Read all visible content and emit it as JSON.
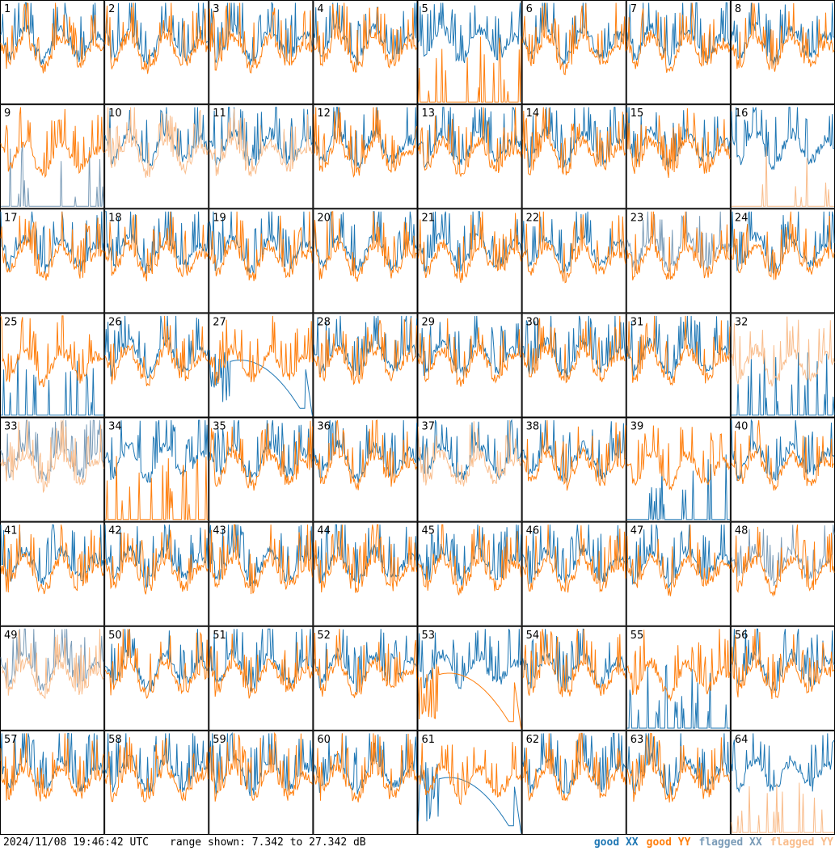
{
  "footer": {
    "timestamp": "2024/11/08 19:46:42 UTC",
    "range_text": "range shown: 7.342 to 27.342 dB"
  },
  "legend": [
    {
      "label": "good XX",
      "color": "#1f77b4"
    },
    {
      "label": "good YY",
      "color": "#ff7f0e"
    },
    {
      "label": "flagged XX",
      "color": "#7b9cb8"
    },
    {
      "label": "flagged YY",
      "color": "#f9bd8c"
    }
  ],
  "chart_data": {
    "type": "line",
    "grid": {
      "rows": 8,
      "cols": 8
    },
    "ylim": [
      7.342,
      27.342
    ],
    "yunit": "dB",
    "tiles": [
      {
        "id": "1",
        "xx": "good",
        "yy": "good",
        "note": "YY dips low at start"
      },
      {
        "id": "2",
        "xx": "good",
        "yy": "good"
      },
      {
        "id": "3",
        "xx": "good",
        "yy": "good"
      },
      {
        "id": "4",
        "xx": "good",
        "yy": "good"
      },
      {
        "id": "5",
        "xx": "good",
        "yy": "good",
        "note": "YY near floor with spikes"
      },
      {
        "id": "6",
        "xx": "good",
        "yy": "good",
        "note": "XX dips low at start"
      },
      {
        "id": "7",
        "xx": "good",
        "yy": "good"
      },
      {
        "id": "8",
        "xx": "good",
        "yy": "good"
      },
      {
        "id": "9",
        "xx": "flagged",
        "yy": "good",
        "note": "XX near floor with spikes"
      },
      {
        "id": "10",
        "xx": "good",
        "yy": "flagged"
      },
      {
        "id": "11",
        "xx": "good",
        "yy": "flagged"
      },
      {
        "id": "12",
        "xx": "good",
        "yy": "good"
      },
      {
        "id": "13",
        "xx": "good",
        "yy": "good"
      },
      {
        "id": "14",
        "xx": "good",
        "yy": "good"
      },
      {
        "id": "15",
        "xx": "good",
        "yy": "good"
      },
      {
        "id": "16",
        "xx": "good",
        "yy": "flagged",
        "note": "YY near floor with spikes"
      },
      {
        "id": "17",
        "xx": "good",
        "yy": "good"
      },
      {
        "id": "18",
        "xx": "good",
        "yy": "good"
      },
      {
        "id": "19",
        "xx": "good",
        "yy": "good"
      },
      {
        "id": "20",
        "xx": "good",
        "yy": "good"
      },
      {
        "id": "21",
        "xx": "good",
        "yy": "good"
      },
      {
        "id": "22",
        "xx": "good",
        "yy": "good"
      },
      {
        "id": "23",
        "xx": "flagged",
        "yy": "good",
        "note": "XX erratic"
      },
      {
        "id": "24",
        "xx": "good",
        "yy": "good"
      },
      {
        "id": "25",
        "xx": "good",
        "yy": "good",
        "note": "XX near floor"
      },
      {
        "id": "26",
        "xx": "good",
        "yy": "good"
      },
      {
        "id": "27",
        "xx": "good",
        "yy": "good",
        "note": "XX arc shape"
      },
      {
        "id": "28",
        "xx": "good",
        "yy": "good"
      },
      {
        "id": "29",
        "xx": "good",
        "yy": "good"
      },
      {
        "id": "30",
        "xx": "good",
        "yy": "good"
      },
      {
        "id": "31",
        "xx": "good",
        "yy": "good"
      },
      {
        "id": "32",
        "xx": "good",
        "yy": "flagged",
        "note": "XX near floor"
      },
      {
        "id": "33",
        "xx": "flagged",
        "yy": "flagged"
      },
      {
        "id": "34",
        "xx": "good",
        "yy": "good",
        "note": "YY near floor with spikes"
      },
      {
        "id": "35",
        "xx": "good",
        "yy": "good"
      },
      {
        "id": "36",
        "xx": "good",
        "yy": "good"
      },
      {
        "id": "37",
        "xx": "good",
        "yy": "flagged"
      },
      {
        "id": "38",
        "xx": "good",
        "yy": "good"
      },
      {
        "id": "39",
        "xx": "good",
        "yy": "good",
        "note": "XX near floor with spikes"
      },
      {
        "id": "40",
        "xx": "good",
        "yy": "good"
      },
      {
        "id": "41",
        "xx": "good",
        "yy": "good"
      },
      {
        "id": "42",
        "xx": "good",
        "yy": "good"
      },
      {
        "id": "43",
        "xx": "good",
        "yy": "good"
      },
      {
        "id": "44",
        "xx": "good",
        "yy": "good"
      },
      {
        "id": "45",
        "xx": "good",
        "yy": "good"
      },
      {
        "id": "46",
        "xx": "good",
        "yy": "good"
      },
      {
        "id": "47",
        "xx": "good",
        "yy": "good"
      },
      {
        "id": "48",
        "xx": "flagged",
        "yy": "good"
      },
      {
        "id": "49",
        "xx": "flagged",
        "yy": "flagged"
      },
      {
        "id": "50",
        "xx": "good",
        "yy": "good"
      },
      {
        "id": "51",
        "xx": "good",
        "yy": "good"
      },
      {
        "id": "52",
        "xx": "good",
        "yy": "good"
      },
      {
        "id": "53",
        "xx": "good",
        "yy": "good",
        "note": "YY arc shape"
      },
      {
        "id": "54",
        "xx": "good",
        "yy": "good"
      },
      {
        "id": "55",
        "xx": "good",
        "yy": "good",
        "note": "XX near floor with spikes"
      },
      {
        "id": "56",
        "xx": "good",
        "yy": "good"
      },
      {
        "id": "57",
        "xx": "good",
        "yy": "good"
      },
      {
        "id": "58",
        "xx": "good",
        "yy": "good"
      },
      {
        "id": "59",
        "xx": "good",
        "yy": "good"
      },
      {
        "id": "60",
        "xx": "good",
        "yy": "good"
      },
      {
        "id": "61",
        "xx": "good",
        "yy": "good",
        "note": "XX arc shape"
      },
      {
        "id": "62",
        "xx": "good",
        "yy": "good"
      },
      {
        "id": "63",
        "xx": "good",
        "yy": "good"
      },
      {
        "id": "64",
        "xx": "good",
        "yy": "flagged",
        "note": "YY near floor with spikes"
      }
    ]
  }
}
